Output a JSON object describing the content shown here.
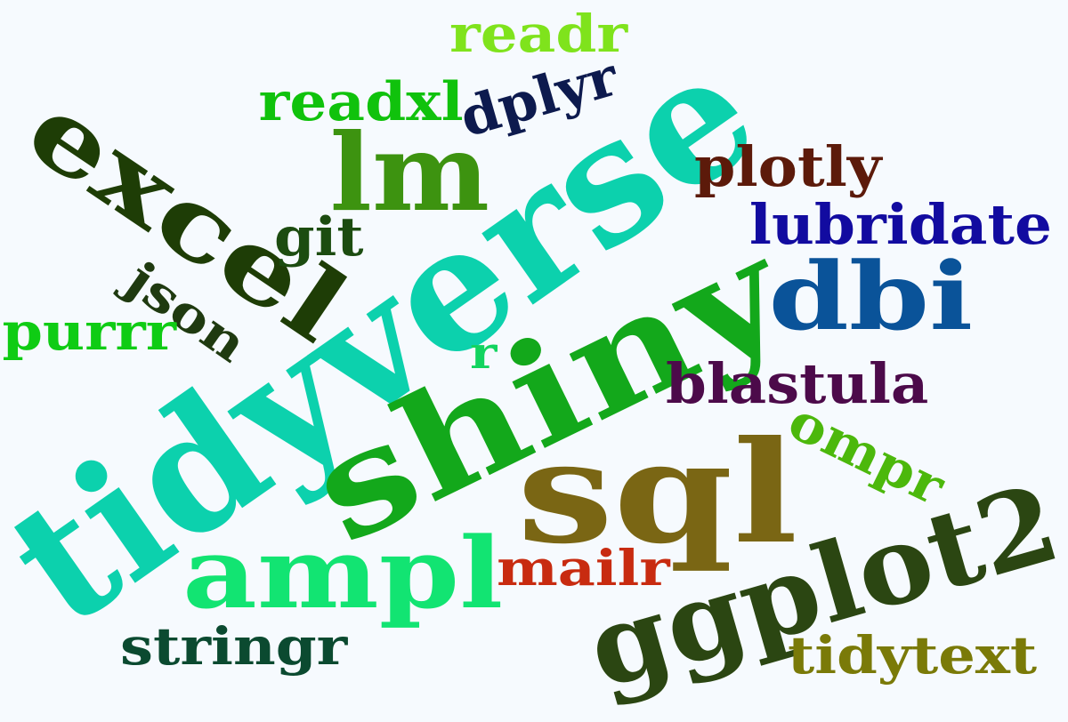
{
  "words": [
    {
      "id": "tidyverse",
      "text": "tidyverse",
      "color": "#0cd1ad",
      "rotation": "-vertical-ish"
    },
    {
      "id": "shiny",
      "text": "shiny",
      "color": "#13a81b"
    },
    {
      "id": "sql",
      "text": "sql",
      "color": "#7a6614"
    },
    {
      "id": "ggplot2",
      "text": "ggplot2",
      "color": "#2b4612"
    },
    {
      "id": "ampl",
      "text": "ampl",
      "color": "#12e472"
    },
    {
      "id": "excel",
      "text": "excel",
      "color": "#1e3d06"
    },
    {
      "id": "lm",
      "text": "lm",
      "color": "#3d9310"
    },
    {
      "id": "dbi",
      "text": "dbi",
      "color": "#0a5399"
    },
    {
      "id": "readr",
      "text": "readr",
      "color": "#7fe31c"
    },
    {
      "id": "readxl",
      "text": "readxl",
      "color": "#10c20c"
    },
    {
      "id": "dplyr",
      "text": "dplyr",
      "color": "#0d1a4e"
    },
    {
      "id": "plotly",
      "text": "plotly",
      "color": "#5c1a0a"
    },
    {
      "id": "lubridate",
      "text": "lubridate",
      "color": "#120ba0"
    },
    {
      "id": "git",
      "text": "git",
      "color": "#1c4c10"
    },
    {
      "id": "json",
      "text": "json",
      "color": "#1f3a10"
    },
    {
      "id": "purrr",
      "text": "purrr",
      "color": "#0fcc14"
    },
    {
      "id": "r",
      "text": "r",
      "color": "#12d45f"
    },
    {
      "id": "blastula",
      "text": "blastula",
      "color": "#4c0a4a"
    },
    {
      "id": "ompr",
      "text": "ompr",
      "color": "#4cb80c"
    },
    {
      "id": "mailr",
      "text": "mailr",
      "color": "#c82b10"
    },
    {
      "id": "stringr",
      "text": "stringr",
      "color": "#0b4a30"
    },
    {
      "id": "tidytext",
      "text": "tidytext",
      "color": "#7a7a08"
    }
  ]
}
